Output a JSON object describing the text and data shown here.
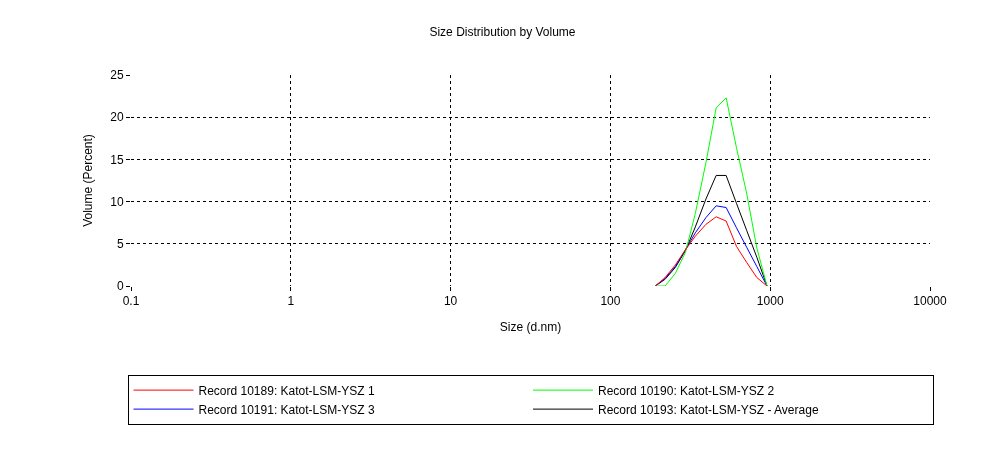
{
  "chart_data": {
    "type": "line",
    "title": "Size Distribution by Volume",
    "xlabel": "Size (d.nm)",
    "ylabel": "Volume (Percent)",
    "x": [
      191,
      220,
      255,
      295,
      340,
      396,
      459,
      530,
      615,
      712,
      825,
      955
    ],
    "series": [
      {
        "name": "Record 10189: Katot-LSM-YSZ 1",
        "color": "#ff0000",
        "values": [
          0,
          1.0,
          2.5,
          4.3,
          5.9,
          7.3,
          8.2,
          7.7,
          4.7,
          2.8,
          1.0,
          0
        ]
      },
      {
        "name": "Record 10190: Katot-LSM-YSZ 2",
        "color": "#00ff00",
        "values": [
          0,
          0,
          1.5,
          4.0,
          8.6,
          14.6,
          21.1,
          22.3,
          16.4,
          11.0,
          4.5,
          0
        ]
      },
      {
        "name": "Record 10191: Katot-LSM-YSZ 3",
        "color": "#0000ff",
        "values": [
          0,
          0.9,
          2.3,
          4.3,
          6.3,
          8.1,
          9.5,
          9.3,
          6.9,
          4.6,
          2.3,
          0
        ]
      },
      {
        "name": "Record 10193: Katot-LSM-YSZ - Average",
        "color": "#000000",
        "values": [
          0,
          0.8,
          2.2,
          4.2,
          7.0,
          10.3,
          13.1,
          13.1,
          9.8,
          6.6,
          3.4,
          0
        ]
      }
    ],
    "log": "x",
    "xlim": [
      0.1,
      10000
    ],
    "xticks": [
      0.1,
      1,
      10,
      100,
      1000,
      10000
    ],
    "ylim": [
      0,
      25
    ],
    "yticks": [
      0,
      5,
      10,
      15,
      20,
      25
    ],
    "grid": true,
    "legend": "bottom",
    "marker": "none",
    "line_style": "solid"
  }
}
